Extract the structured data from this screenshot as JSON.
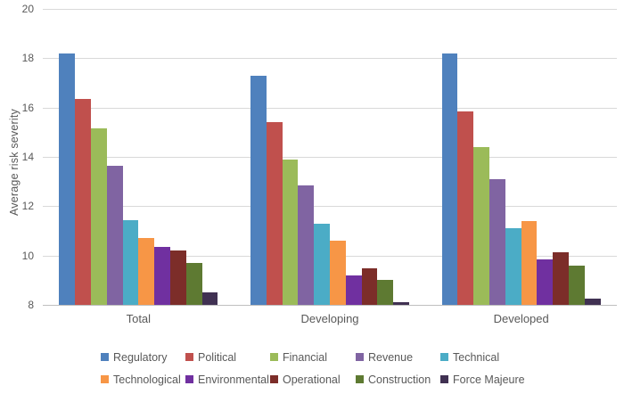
{
  "chart_data": {
    "type": "bar",
    "title": "",
    "xlabel": "",
    "ylabel": "Average risk severity",
    "ylim": [
      8,
      20
    ],
    "yticks": [
      8,
      10,
      12,
      14,
      16,
      18,
      20
    ],
    "grid": true,
    "legend_position": "bottom",
    "categories": [
      "Total",
      "Developing",
      "Developed"
    ],
    "series": [
      {
        "name": "Regulatory",
        "color": "#4F81BD",
        "values": [
          18.2,
          17.3,
          18.2
        ]
      },
      {
        "name": "Political",
        "color": "#C0504D",
        "values": [
          16.35,
          15.4,
          15.85
        ]
      },
      {
        "name": "Financial",
        "color": "#9BBB59",
        "values": [
          15.15,
          13.9,
          14.4
        ]
      },
      {
        "name": "Revenue",
        "color": "#8064A2",
        "values": [
          13.65,
          12.85,
          13.1
        ]
      },
      {
        "name": "Technical",
        "color": "#4BACC6",
        "values": [
          11.45,
          11.3,
          11.1
        ]
      },
      {
        "name": "Technological",
        "color": "#F79646",
        "values": [
          10.7,
          10.6,
          11.4
        ]
      },
      {
        "name": "Environmental",
        "color": "#7030A0",
        "values": [
          10.35,
          9.2,
          9.85
        ]
      },
      {
        "name": "Operational",
        "color": "#7C2D29",
        "values": [
          10.2,
          9.5,
          10.15
        ]
      },
      {
        "name": "Construction",
        "color": "#5E7A32",
        "values": [
          9.7,
          9.0,
          9.6
        ]
      },
      {
        "name": "Force Majeure",
        "color": "#403152",
        "values": [
          8.5,
          8.1,
          8.25
        ]
      }
    ],
    "colors": {
      "text": "#595959",
      "gridline": "#D9D9D9",
      "axis_line": "#BFBFBF",
      "background": "#FFFFFF"
    }
  }
}
